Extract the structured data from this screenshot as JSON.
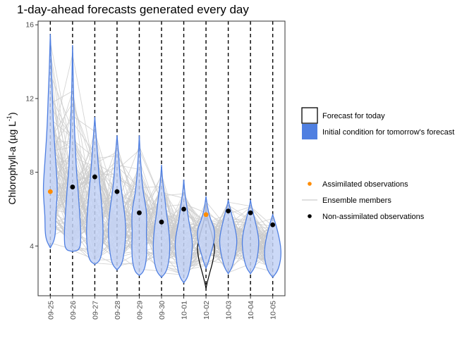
{
  "chart_data": {
    "type": "violin",
    "title": "1-day-ahead forecasts generated every day",
    "ylabel": "Chlorophyll-a (µg L",
    "ylabel_unit_sup": "-1",
    "ylabel_close": ")",
    "ylim": [
      1.3,
      16.2
    ],
    "yticks": [
      4,
      8,
      12,
      16
    ],
    "grid": false,
    "legend_position": "right",
    "categories": [
      "09-25",
      "09-26",
      "09-27",
      "09-28",
      "09-29",
      "09-30",
      "10-01",
      "10-02",
      "10-03",
      "10-04",
      "10-05"
    ],
    "forecast_for_today": {
      "category": "10-02",
      "profile": [
        [
          1.7,
          0
        ],
        [
          2.1,
          0.18
        ],
        [
          2.6,
          0.45
        ],
        [
          3.1,
          0.75
        ],
        [
          3.5,
          0.9
        ],
        [
          3.9,
          1
        ],
        [
          4.2,
          0.85
        ],
        [
          4.6,
          0.7
        ],
        [
          5.0,
          0.45
        ],
        [
          5.4,
          0.2
        ],
        [
          5.8,
          0.08
        ],
        [
          6.3,
          0
        ]
      ]
    },
    "initial_condition_violins": [
      {
        "category": "09-25",
        "profile": [
          [
            3.9,
            0
          ],
          [
            4.3,
            0.45
          ],
          [
            4.8,
            0.6
          ],
          [
            5.6,
            0.6
          ],
          [
            6.5,
            0.75
          ],
          [
            7.2,
            0.8
          ],
          [
            8.0,
            0.7
          ],
          [
            9.0,
            0.55
          ],
          [
            10.5,
            0.35
          ],
          [
            12.0,
            0.25
          ],
          [
            13.5,
            0.12
          ],
          [
            14.8,
            0.05
          ],
          [
            15.5,
            0
          ]
        ]
      },
      {
        "category": "09-26",
        "profile": [
          [
            3.7,
            0
          ],
          [
            3.8,
            0.85
          ],
          [
            4.5,
            0.95
          ],
          [
            5.5,
            0.85
          ],
          [
            6.5,
            0.7
          ],
          [
            7.2,
            0.6
          ],
          [
            8.0,
            0.45
          ],
          [
            9.0,
            0.35
          ],
          [
            10.0,
            0.25
          ],
          [
            11.5,
            0.15
          ],
          [
            13.0,
            0.07
          ],
          [
            14.3,
            0.03
          ],
          [
            14.9,
            0
          ]
        ]
      },
      {
        "category": "09-27",
        "profile": [
          [
            3.0,
            0
          ],
          [
            3.2,
            0.6
          ],
          [
            3.8,
            0.85
          ],
          [
            4.6,
            0.95
          ],
          [
            5.5,
            0.9
          ],
          [
            6.4,
            0.75
          ],
          [
            7.2,
            0.6
          ],
          [
            8.0,
            0.45
          ],
          [
            9.0,
            0.3
          ],
          [
            10.2,
            0.12
          ],
          [
            11.0,
            0
          ]
        ]
      },
      {
        "category": "09-28",
        "profile": [
          [
            2.7,
            0
          ],
          [
            3.0,
            0.55
          ],
          [
            3.6,
            0.8
          ],
          [
            4.3,
            0.95
          ],
          [
            5.0,
            1
          ],
          [
            5.8,
            0.85
          ],
          [
            6.5,
            0.65
          ],
          [
            7.2,
            0.45
          ],
          [
            8.0,
            0.3
          ],
          [
            9.0,
            0.18
          ],
          [
            10.0,
            0
          ]
        ]
      },
      {
        "category": "09-29",
        "profile": [
          [
            2.4,
            0
          ],
          [
            2.6,
            0.5
          ],
          [
            3.2,
            0.8
          ],
          [
            4.0,
            0.85
          ],
          [
            4.7,
            0.8
          ],
          [
            5.4,
            0.85
          ],
          [
            6.0,
            0.8
          ],
          [
            6.6,
            0.55
          ],
          [
            7.3,
            0.35
          ],
          [
            8.2,
            0.2
          ],
          [
            9.2,
            0.08
          ],
          [
            10.0,
            0
          ]
        ]
      },
      {
        "category": "09-30",
        "profile": [
          [
            2.3,
            0
          ],
          [
            2.6,
            0.55
          ],
          [
            3.2,
            0.85
          ],
          [
            3.9,
            0.95
          ],
          [
            4.5,
            0.9
          ],
          [
            5.2,
            0.75
          ],
          [
            5.8,
            0.55
          ],
          [
            6.5,
            0.4
          ],
          [
            7.2,
            0.2
          ],
          [
            7.8,
            0.08
          ],
          [
            8.4,
            0
          ]
        ]
      },
      {
        "category": "10-01",
        "profile": [
          [
            2.0,
            0
          ],
          [
            2.3,
            0.45
          ],
          [
            2.9,
            0.75
          ],
          [
            3.5,
            0.9
          ],
          [
            4.2,
            1
          ],
          [
            4.8,
            0.8
          ],
          [
            5.4,
            0.55
          ],
          [
            6.0,
            0.4
          ],
          [
            6.6,
            0.2
          ],
          [
            7.1,
            0.08
          ],
          [
            7.6,
            0
          ]
        ]
      },
      {
        "category": "10-02",
        "profile": [
          [
            2.8,
            0
          ],
          [
            3.1,
            0.25
          ],
          [
            3.6,
            0.55
          ],
          [
            4.1,
            0.85
          ],
          [
            4.6,
            1
          ],
          [
            5.0,
            0.9
          ],
          [
            5.4,
            0.55
          ],
          [
            5.9,
            0.25
          ],
          [
            6.4,
            0.08
          ],
          [
            6.7,
            0
          ]
        ]
      },
      {
        "category": "10-03",
        "profile": [
          [
            2.5,
            0
          ],
          [
            2.8,
            0.4
          ],
          [
            3.3,
            0.7
          ],
          [
            3.8,
            0.9
          ],
          [
            4.3,
            1
          ],
          [
            4.8,
            0.85
          ],
          [
            5.3,
            0.6
          ],
          [
            5.8,
            0.35
          ],
          [
            6.2,
            0.12
          ],
          [
            6.5,
            0
          ]
        ]
      },
      {
        "category": "10-04",
        "profile": [
          [
            2.5,
            0
          ],
          [
            2.8,
            0.45
          ],
          [
            3.3,
            0.75
          ],
          [
            3.8,
            0.9
          ],
          [
            4.3,
            0.95
          ],
          [
            4.8,
            0.8
          ],
          [
            5.3,
            0.55
          ],
          [
            5.8,
            0.3
          ],
          [
            6.2,
            0.1
          ],
          [
            6.5,
            0
          ]
        ]
      },
      {
        "category": "10-05",
        "profile": [
          [
            2.3,
            0
          ],
          [
            2.6,
            0.5
          ],
          [
            3.0,
            0.8
          ],
          [
            3.5,
            0.95
          ],
          [
            4.0,
            0.9
          ],
          [
            4.5,
            0.7
          ],
          [
            5.0,
            0.45
          ],
          [
            5.4,
            0.2
          ],
          [
            5.7,
            0
          ]
        ]
      }
    ],
    "assimilated_observations": [
      {
        "x": "09-25",
        "y": 6.95
      },
      {
        "x": "10-02",
        "y": 5.7
      }
    ],
    "non_assimilated_observations": [
      {
        "x": "09-26",
        "y": 7.2
      },
      {
        "x": "09-27",
        "y": 7.75
      },
      {
        "x": "09-28",
        "y": 6.95
      },
      {
        "x": "09-29",
        "y": 5.8
      },
      {
        "x": "09-30",
        "y": 5.3
      },
      {
        "x": "10-01",
        "y": 6.0
      },
      {
        "x": "10-03",
        "y": 5.9
      },
      {
        "x": "10-04",
        "y": 5.8
      },
      {
        "x": "10-05",
        "y": 5.15
      }
    ],
    "ensemble_members_count": 100,
    "legend": {
      "fill_items": [
        {
          "label": "Forecast for today",
          "style": "outline"
        },
        {
          "label": "Initial condition for tomorrow's forecast",
          "style": "filled"
        }
      ],
      "marker_items": [
        {
          "label": "Assimilated observations",
          "style": "orange-point"
        },
        {
          "label": "Ensemble members",
          "style": "grey-line"
        },
        {
          "label": "Non-assimilated observations",
          "style": "black-point"
        }
      ]
    },
    "colors": {
      "violin_fill": "#c3d2f6",
      "violin_stroke": "#4f7fe1",
      "legend_fill": "#4f7fe1",
      "forecast_outline": "#000000",
      "ensemble_line": "#cccccc",
      "assimilated_point": "#ff8c00",
      "non_assimilated_point": "#000000",
      "dashed_line": "#000000",
      "panel_border": "#333333"
    }
  }
}
